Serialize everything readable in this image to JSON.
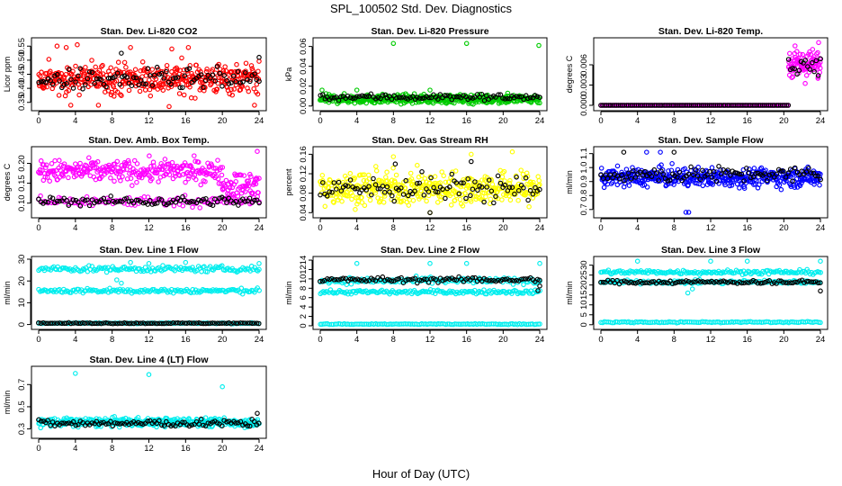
{
  "title": "SPL_100502  Std. Dev. Diagnostics",
  "xlabel": "Hour of Day (UTC)",
  "chart_data": [
    {
      "type": "scatter",
      "title": "Stan. Dev. Li-820 CO2",
      "ylabel": "Licor ppm",
      "xlim": [
        0,
        24
      ],
      "ylim": [
        0.33,
        0.57
      ],
      "xticks": [
        "0",
        "4",
        "8",
        "12",
        "16",
        "20",
        "24"
      ],
      "yticks": [
        "0.35",
        "0.40",
        "0.45",
        "0.50",
        "0.55"
      ],
      "series": [
        {
          "color": "#ff0000",
          "n": 420,
          "x_range": [
            0,
            24
          ],
          "y_center": 0.435,
          "y_spread": 0.05,
          "outliers": [
            [
              4.2,
              0.555
            ],
            [
              2.0,
              0.55
            ],
            [
              3.0,
              0.545
            ],
            [
              16.3,
              0.545
            ],
            [
              10.0,
              0.545
            ],
            [
              14.5,
              0.54
            ],
            [
              14.2,
              0.335
            ],
            [
              6.5,
              0.34
            ],
            [
              3.5,
              0.34
            ],
            [
              23.5,
              0.34
            ]
          ]
        },
        {
          "color": "#000000",
          "n": 96,
          "x_range": [
            0,
            24
          ],
          "y_center": 0.43,
          "y_spread": 0.035,
          "outliers": [
            [
              9.0,
              0.525
            ],
            [
              24.0,
              0.51
            ]
          ]
        }
      ]
    },
    {
      "type": "scatter",
      "title": "Stan. Dev. Li-820 Pressure",
      "ylabel": "kPa",
      "xlim": [
        0,
        24
      ],
      "ylim": [
        -0.002,
        0.066
      ],
      "xticks": [
        "0",
        "4",
        "8",
        "12",
        "16",
        "20",
        "24"
      ],
      "yticks": [
        "0.00",
        "0.02",
        "0.04",
        "0.06"
      ],
      "series": [
        {
          "color": "#00cc00",
          "n": 420,
          "x_range": [
            0,
            24
          ],
          "y_center": 0.007,
          "y_spread": 0.004,
          "outliers": [
            [
              8.0,
              0.063
            ],
            [
              16.0,
              0.063
            ],
            [
              23.9,
              0.061
            ],
            [
              0.2,
              0.016
            ],
            [
              4.0,
              0.016
            ],
            [
              12.0,
              0.016
            ],
            [
              20.5,
              0.013
            ]
          ]
        },
        {
          "color": "#000000",
          "n": 96,
          "x_range": [
            0,
            24
          ],
          "y_center": 0.009,
          "y_spread": 0.003,
          "outliers": []
        }
      ]
    },
    {
      "type": "scatter",
      "title": "Stan. Dev. Li-820 Temp.",
      "ylabel": "degrees C",
      "xlim": [
        0,
        24
      ],
      "ylim": [
        -0.0004,
        0.0096
      ],
      "xticks": [
        "0",
        "4",
        "8",
        "12",
        "16",
        "20",
        "24"
      ],
      "yticks": [
        "0.000",
        "0.003",
        "0.006"
      ],
      "series": [
        {
          "color": "#ff00ff",
          "n": 160,
          "x_range": [
            0,
            20.5
          ],
          "y_center": 0.0,
          "y_spread": 0.0,
          "outliers": []
        },
        {
          "color": "#ff00ff",
          "n": 90,
          "x_range": [
            20.5,
            24
          ],
          "y_center": 0.006,
          "y_spread": 0.002,
          "outliers": [
            [
              23.8,
              0.0093
            ]
          ]
        },
        {
          "color": "#000000",
          "n": 96,
          "x_range": [
            0,
            20.5
          ],
          "y_center": 0.0,
          "y_spread": 0.0,
          "outliers": []
        },
        {
          "color": "#000000",
          "n": 16,
          "x_range": [
            20.5,
            24
          ],
          "y_center": 0.006,
          "y_spread": 0.0015,
          "outliers": []
        }
      ]
    },
    {
      "type": "scatter",
      "title": "Stan. Dev. Amb. Box Temp.",
      "ylabel": "degrees C",
      "xlim": [
        0,
        24
      ],
      "ylim": [
        0.07,
        0.235
      ],
      "xticks": [
        "0",
        "4",
        "8",
        "12",
        "16",
        "20",
        "24"
      ],
      "yticks": [
        "0.10",
        "0.15",
        "0.20"
      ],
      "series": [
        {
          "color": "#ff00ff",
          "n": 280,
          "x_range": [
            0,
            20
          ],
          "y_center": 0.18,
          "y_spread": 0.025,
          "outliers": []
        },
        {
          "color": "#ff00ff",
          "n": 60,
          "x_range": [
            20,
            24
          ],
          "y_center": 0.145,
          "y_spread": 0.03,
          "outliers": [
            [
              23.8,
              0.23
            ]
          ]
        },
        {
          "color": "#ff00ff",
          "n": 120,
          "x_range": [
            0,
            24
          ],
          "y_center": 0.105,
          "y_spread": 0.012,
          "outliers": []
        },
        {
          "color": "#000000",
          "n": 96,
          "x_range": [
            0,
            24
          ],
          "y_center": 0.105,
          "y_spread": 0.01,
          "outliers": []
        }
      ]
    },
    {
      "type": "scatter",
      "title": "Stan. Dev. Gas Stream RH",
      "ylabel": "percent",
      "xlim": [
        0,
        24
      ],
      "ylim": [
        0.035,
        0.17
      ],
      "xticks": [
        "0",
        "4",
        "8",
        "12",
        "16",
        "20",
        "24"
      ],
      "yticks": [
        "0.04",
        "0.08",
        "0.12",
        "0.16"
      ],
      "series": [
        {
          "color": "#ffff00",
          "n": 420,
          "x_range": [
            0,
            24
          ],
          "y_center": 0.09,
          "y_spread": 0.03,
          "outliers": [
            [
              21.0,
              0.165
            ],
            [
              16.5,
              0.16
            ],
            [
              8.0,
              0.155
            ],
            [
              12.0,
              0.04
            ]
          ]
        },
        {
          "color": "#000000",
          "n": 96,
          "x_range": [
            0,
            24
          ],
          "y_center": 0.09,
          "y_spread": 0.025,
          "outliers": [
            [
              16.5,
              0.145
            ],
            [
              8.2,
              0.14
            ],
            [
              12.0,
              0.04
            ]
          ]
        }
      ]
    },
    {
      "type": "scatter",
      "title": "Stan. Dev. Sample Flow",
      "ylabel": "ml/min",
      "xlim": [
        0,
        24
      ],
      "ylim": [
        0.66,
        1.13
      ],
      "xticks": [
        "0",
        "4",
        "8",
        "12",
        "16",
        "20",
        "24"
      ],
      "yticks": [
        "0.7",
        "0.8",
        "0.9",
        "1.0",
        "1.1"
      ],
      "series": [
        {
          "color": "#0000ff",
          "n": 420,
          "x_range": [
            0,
            24
          ],
          "y_center": 0.93,
          "y_spread": 0.06,
          "outliers": [
            [
              9.3,
              0.68
            ],
            [
              9.6,
              0.68
            ],
            [
              5.0,
              1.11
            ],
            [
              6.5,
              1.11
            ]
          ]
        },
        {
          "color": "#000000",
          "n": 96,
          "x_range": [
            0,
            24
          ],
          "y_center": 0.95,
          "y_spread": 0.05,
          "outliers": [
            [
              2.5,
              1.11
            ],
            [
              8.0,
              1.11
            ]
          ]
        }
      ]
    },
    {
      "type": "scatter",
      "title": "Stan. Dev. Line 1 Flow",
      "ylabel": "ml/min",
      "xlim": [
        0,
        24
      ],
      "ylim": [
        -1,
        30
      ],
      "xticks": [
        "0",
        "4",
        "8",
        "12",
        "16",
        "20",
        "24"
      ],
      "yticks": [
        "0",
        "10",
        "20",
        "30"
      ],
      "series": [
        {
          "color": "#00eeee",
          "n": 150,
          "x_range": [
            0,
            24
          ],
          "y_center": 25.5,
          "y_spread": 1.2,
          "outliers": [
            [
              8.5,
              20.5
            ],
            [
              9.0,
              19.0
            ],
            [
              10.0,
              28.5
            ],
            [
              12.0,
              28.0
            ],
            [
              16.0,
              28.5
            ],
            [
              24.0,
              28.0
            ]
          ]
        },
        {
          "color": "#00eeee",
          "n": 150,
          "x_range": [
            0,
            24
          ],
          "y_center": 15.5,
          "y_spread": 1.0,
          "outliers": []
        },
        {
          "color": "#00eeee",
          "n": 120,
          "x_range": [
            0,
            24
          ],
          "y_center": 0.6,
          "y_spread": 0.2,
          "outliers": []
        },
        {
          "color": "#000000",
          "n": 96,
          "x_range": [
            0,
            24
          ],
          "y_center": 0.6,
          "y_spread": 0.2,
          "outliers": []
        }
      ]
    },
    {
      "type": "scatter",
      "title": "Stan. Dev. Line 2 Flow",
      "ylabel": "ml/min",
      "xlim": [
        0,
        24
      ],
      "ylim": [
        -0.2,
        14.2
      ],
      "xticks": [
        "0",
        "4",
        "8",
        "12",
        "16",
        "20",
        "24"
      ],
      "yticks": [
        "0",
        "2",
        "4",
        "6",
        "8",
        "10",
        "12",
        "14"
      ],
      "series": [
        {
          "color": "#00eeee",
          "n": 150,
          "x_range": [
            0,
            24
          ],
          "y_center": 9.6,
          "y_spread": 0.6,
          "outliers": [
            [
              4.0,
              13.3
            ],
            [
              12.0,
              13.3
            ],
            [
              16.0,
              13.3
            ],
            [
              24.0,
              13.3
            ]
          ]
        },
        {
          "color": "#00eeee",
          "n": 150,
          "x_range": [
            0,
            24
          ],
          "y_center": 7.2,
          "y_spread": 0.4,
          "outliers": []
        },
        {
          "color": "#00eeee",
          "n": 120,
          "x_range": [
            0,
            24
          ],
          "y_center": 0.35,
          "y_spread": 0.1,
          "outliers": []
        },
        {
          "color": "#000000",
          "n": 96,
          "x_range": [
            0,
            24
          ],
          "y_center": 9.8,
          "y_spread": 0.5,
          "outliers": [
            [
              23.8,
              7.5
            ],
            [
              24.0,
              8.5
            ]
          ]
        }
      ]
    },
    {
      "type": "scatter",
      "title": "Stan. Dev. Line 3 Flow",
      "ylabel": "ml/min",
      "xlim": [
        0,
        24
      ],
      "ylim": [
        -1,
        33
      ],
      "xticks": [
        "0",
        "4",
        "8",
        "12",
        "16",
        "20",
        "24"
      ],
      "yticks": [
        "0",
        "5",
        "10",
        "15",
        "20",
        "25",
        "30"
      ],
      "series": [
        {
          "color": "#00eeee",
          "n": 150,
          "x_range": [
            0,
            24
          ],
          "y_center": 26.5,
          "y_spread": 1.0,
          "outliers": [
            [
              9.5,
              16.0
            ],
            [
              10.0,
              18.0
            ],
            [
              4.0,
              32.0
            ],
            [
              12.0,
              32.0
            ],
            [
              16.0,
              32.0
            ],
            [
              24.0,
              32.0
            ]
          ]
        },
        {
          "color": "#00eeee",
          "n": 150,
          "x_range": [
            0,
            24
          ],
          "y_center": 21.5,
          "y_spread": 0.8,
          "outliers": []
        },
        {
          "color": "#00eeee",
          "n": 120,
          "x_range": [
            0,
            24
          ],
          "y_center": 1.3,
          "y_spread": 0.3,
          "outliers": []
        },
        {
          "color": "#000000",
          "n": 96,
          "x_range": [
            0,
            24
          ],
          "y_center": 21.5,
          "y_spread": 0.8,
          "outliers": [
            [
              24.0,
              17.0
            ]
          ]
        }
      ]
    },
    {
      "type": "scatter",
      "title": "Stan. Dev. Line 4 (LT) Flow",
      "ylabel": "ml/min",
      "xlim": [
        0,
        24
      ],
      "ylim": [
        0.24,
        0.84
      ],
      "xticks": [
        "0",
        "4",
        "8",
        "12",
        "16",
        "20",
        "24"
      ],
      "yticks": [
        "0.3",
        "0.5",
        "0.7"
      ],
      "series": [
        {
          "color": "#00eeee",
          "n": 420,
          "x_range": [
            0,
            24
          ],
          "y_center": 0.36,
          "y_spread": 0.035,
          "outliers": [
            [
              4.0,
              0.8
            ],
            [
              12.0,
              0.79
            ],
            [
              20.0,
              0.68
            ]
          ]
        },
        {
          "color": "#000000",
          "n": 96,
          "x_range": [
            0,
            24
          ],
          "y_center": 0.35,
          "y_spread": 0.03,
          "outliers": [
            [
              23.8,
              0.44
            ]
          ]
        }
      ]
    }
  ]
}
